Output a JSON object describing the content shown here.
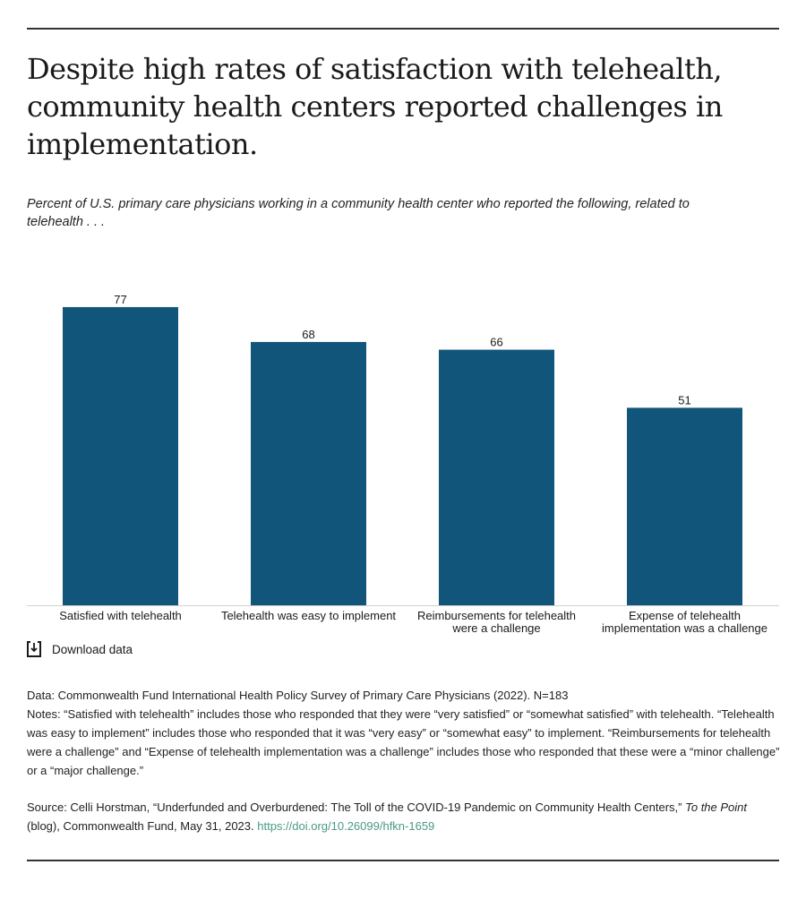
{
  "title": "Despite high rates of satisfaction with telehealth, community health centers reported challenges in implementation.",
  "subtitle": "Percent of U.S. primary care physicians working in a community health center who reported the following, related to telehealth . . .",
  "download_label": "Download data",
  "notes": {
    "data": "Data: Commonwealth Fund International Health Policy Survey of Primary Care Physicians (2022). N=183",
    "notes": "Notes: “Satisfied with telehealth” includes those who responded that they were “very satisfied” or “somewhat satisfied” with telehealth. “Telehealth was easy to implement” includes those who responded that it was “very easy” or “somewhat easy” to implement. “Reimbursements for telehealth were a challenge” and “Expense of telehealth implementation was a challenge” includes those who responded that these were a “minor challenge” or a “major challenge.”"
  },
  "source": {
    "prefix": "Source: Celli Horstman, “Underfunded and Overburdened: The Toll of the COVID-19 Pandemic on Community Health Centers,” ",
    "italic": "To the Point",
    "suffix": " (blog), Commonwealth Fund, May 31, 2023. ",
    "link": "https://doi.org/10.26099/hfkn-1659"
  },
  "colors": {
    "bar": "#12557a",
    "link": "#4a9a86"
  },
  "chart_data": {
    "type": "bar",
    "categories": [
      "Satisfied with telehealth",
      "Telehealth was easy to implement",
      "Reimbursements for telehealth were a challenge",
      "Expense of telehealth implementation was a challenge"
    ],
    "category_lines": [
      [
        "Satisfied with telehealth"
      ],
      [
        "Telehealth was easy to implement"
      ],
      [
        "Reimbursements for telehealth",
        "were a challenge"
      ],
      [
        "Expense of telehealth",
        "implementation was a challenge"
      ]
    ],
    "values": [
      77,
      68,
      66,
      51
    ],
    "ylim": [
      0,
      100
    ],
    "grid": false,
    "data_labels": true
  }
}
